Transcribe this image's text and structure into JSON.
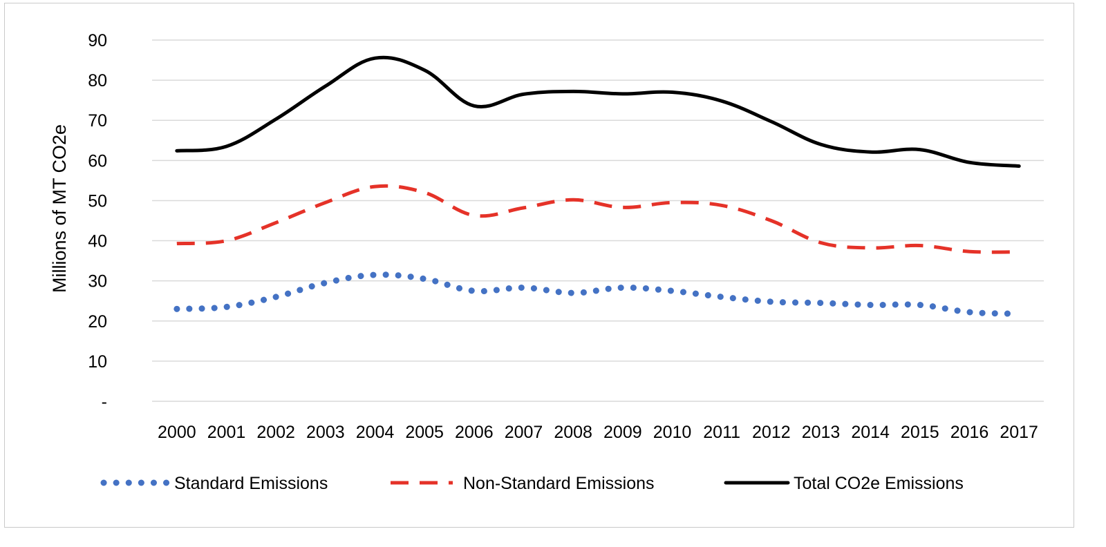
{
  "chart_data": {
    "type": "line",
    "title": "",
    "xlabel": "",
    "ylabel": "Millions of MT CO2e",
    "ylim": [
      0,
      90
    ],
    "yticks": [
      0,
      10,
      20,
      30,
      40,
      50,
      60,
      70,
      80,
      90
    ],
    "ytick_labels": [
      "-",
      "10",
      "20",
      "30",
      "40",
      "50",
      "60",
      "70",
      "80",
      "90"
    ],
    "grid": "horizontal",
    "legend_position": "bottom",
    "categories": [
      "2000",
      "2001",
      "2002",
      "2003",
      "2004",
      "2005",
      "2006",
      "2007",
      "2008",
      "2009",
      "2010",
      "2011",
      "2012",
      "2013",
      "2014",
      "2015",
      "2016",
      "2017"
    ],
    "series": [
      {
        "name": "Standard Emissions",
        "style": "dotted",
        "color": "#4472C4",
        "values": [
          23.0,
          23.5,
          26.0,
          29.5,
          31.5,
          30.5,
          27.5,
          28.3,
          27.0,
          28.3,
          27.5,
          26.0,
          24.8,
          24.5,
          24.0,
          24.0,
          22.2,
          21.8
        ]
      },
      {
        "name": "Non-Standard Emissions",
        "style": "dashed",
        "color": "#E53228",
        "values": [
          39.3,
          40.0,
          44.5,
          49.5,
          53.5,
          52.0,
          46.3,
          48.2,
          50.2,
          48.3,
          49.5,
          48.8,
          45.0,
          39.5,
          38.2,
          38.8,
          37.3,
          37.2
        ]
      },
      {
        "name": "Total CO2e Emissions",
        "style": "solid",
        "color": "#000000",
        "values": [
          62.4,
          63.5,
          70.3,
          78.5,
          85.5,
          82.5,
          73.6,
          76.5,
          77.2,
          76.6,
          77.0,
          74.8,
          69.7,
          64.0,
          62.1,
          62.7,
          59.5,
          58.6
        ]
      }
    ]
  }
}
